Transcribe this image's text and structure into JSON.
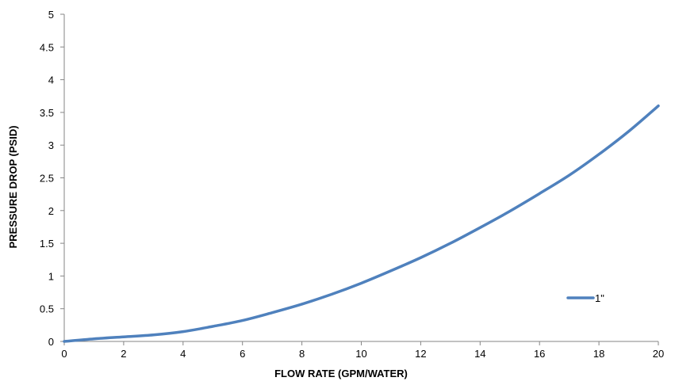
{
  "chart_data": {
    "type": "line",
    "title": "",
    "xlabel": "FLOW RATE (GPM/WATER)",
    "ylabel": "PRESSURE DROP (PSID)",
    "xlim": [
      0,
      20
    ],
    "ylim": [
      0,
      5
    ],
    "x_ticks": [
      "0",
      "2",
      "4",
      "6",
      "8",
      "10",
      "12",
      "14",
      "16",
      "18",
      "20"
    ],
    "y_ticks": [
      "0",
      "0.5",
      "1",
      "1.5",
      "2",
      "2.5",
      "3",
      "3.5",
      "4",
      "4.5",
      "5"
    ],
    "grid": false,
    "legend_position": "right",
    "series": [
      {
        "name": "1\"",
        "color": "#4f81bd",
        "x": [
          0,
          1,
          2,
          3,
          4,
          5,
          6,
          7,
          8,
          9,
          10,
          11,
          12,
          13,
          14,
          15,
          16,
          17,
          18,
          19,
          20
        ],
        "y": [
          0,
          0.04,
          0.07,
          0.1,
          0.15,
          0.23,
          0.32,
          0.44,
          0.57,
          0.72,
          0.89,
          1.08,
          1.28,
          1.5,
          1.74,
          1.99,
          2.26,
          2.54,
          2.86,
          3.21,
          3.6
        ]
      }
    ]
  }
}
